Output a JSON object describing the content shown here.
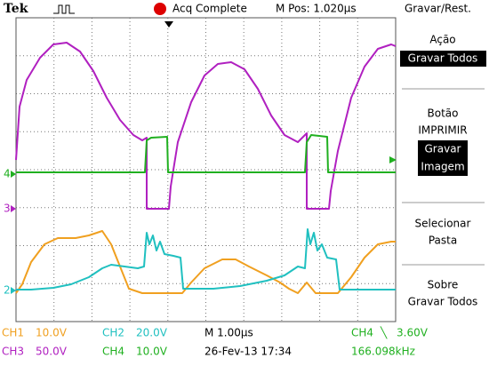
{
  "header": {
    "brand": "Tek",
    "status": "Acq Complete",
    "position": "M Pos: 1.020µs",
    "menu_title": "Gravar/Rest."
  },
  "menu": [
    {
      "lines": [
        "Ação",
        "Gravar Todos"
      ]
    },
    {
      "lines": [
        "Botão",
        "IMPRIMIR",
        "Gravar",
        "Imagem"
      ]
    },
    {
      "lines": [
        "Selecionar",
        "Pasta"
      ]
    },
    {
      "lines": [
        "Sobre",
        "Gravar Todos"
      ]
    }
  ],
  "markers": {
    "ch4": "4",
    "ch3": "3",
    "ch2": "2"
  },
  "footer": {
    "ch1": "CH1",
    "ch1_scale": "10.0V",
    "ch2": "CH2",
    "ch2_scale": "20.0V",
    "timebase": "M 1.00µs",
    "trigger_source": "CH4",
    "trigger_symbol": "╲",
    "trigger_level": "3.60V",
    "ch3": "CH3",
    "ch3_scale": "50.0V",
    "ch4": "CH4",
    "ch4_scale": "10.0V",
    "date": "26-Fev-13 17:34",
    "frequency": "166.098kHz"
  }
}
